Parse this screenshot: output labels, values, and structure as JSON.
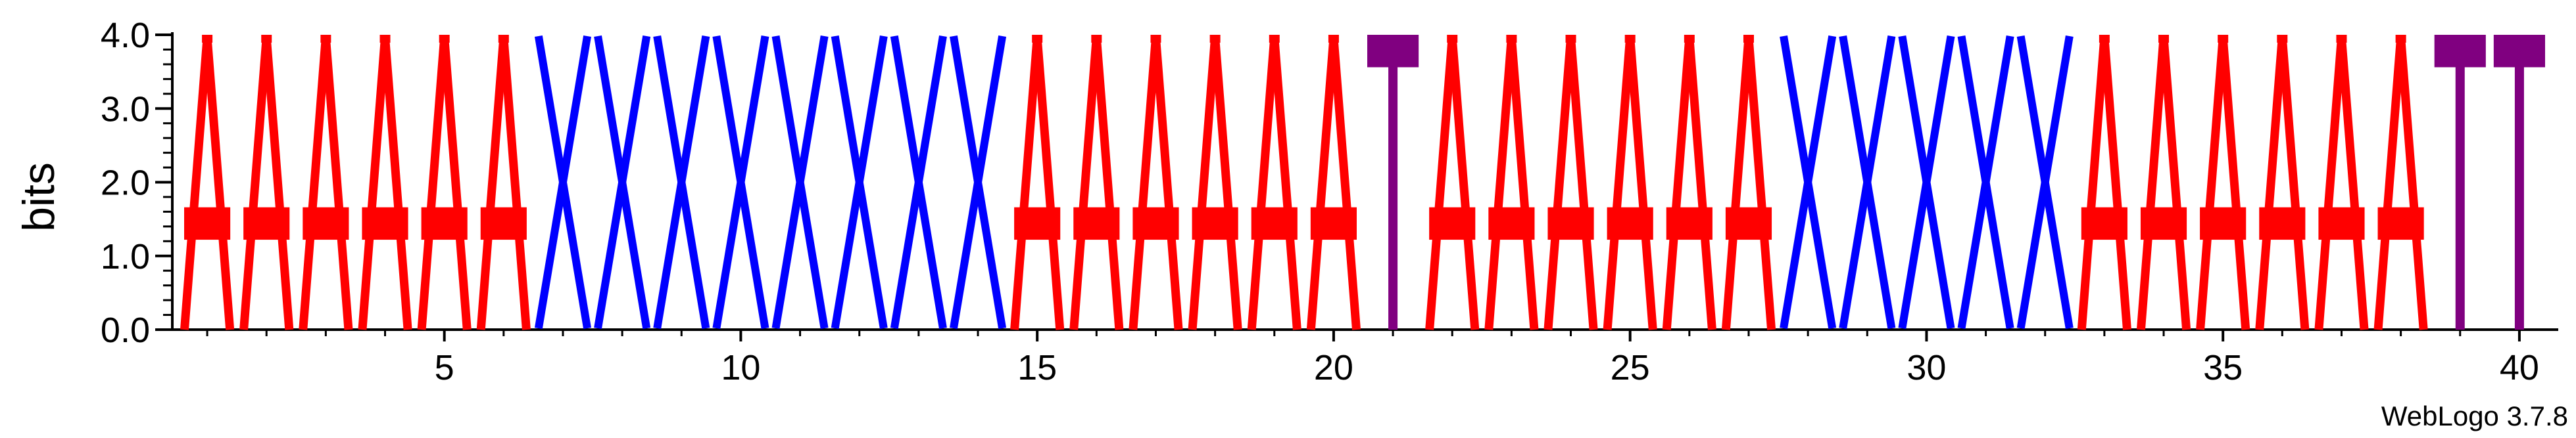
{
  "chart_data": {
    "type": "sequence-logo",
    "title": "",
    "ylabel": "bits",
    "xlabel": "",
    "ylim": [
      0,
      4.0
    ],
    "yticks": [
      "0.0",
      "1.0",
      "2.0",
      "3.0",
      "4.0"
    ],
    "xtick_labels": [
      "5",
      "10",
      "15",
      "20",
      "25",
      "30",
      "35",
      "40"
    ],
    "xtick_positions": [
      5,
      10,
      15,
      20,
      25,
      30,
      35,
      40
    ],
    "grid": false,
    "colors": {
      "A": "#ff0000",
      "X": "#0000ff",
      "T": "#800080"
    },
    "positions": [
      {
        "pos": 1,
        "letter": "A",
        "bits": 4.0
      },
      {
        "pos": 2,
        "letter": "A",
        "bits": 4.0
      },
      {
        "pos": 3,
        "letter": "A",
        "bits": 4.0
      },
      {
        "pos": 4,
        "letter": "A",
        "bits": 4.0
      },
      {
        "pos": 5,
        "letter": "A",
        "bits": 4.0
      },
      {
        "pos": 6,
        "letter": "A",
        "bits": 4.0
      },
      {
        "pos": 7,
        "letter": "X",
        "bits": 4.0
      },
      {
        "pos": 8,
        "letter": "X",
        "bits": 4.0
      },
      {
        "pos": 9,
        "letter": "X",
        "bits": 4.0
      },
      {
        "pos": 10,
        "letter": "X",
        "bits": 4.0
      },
      {
        "pos": 11,
        "letter": "X",
        "bits": 4.0
      },
      {
        "pos": 12,
        "letter": "X",
        "bits": 4.0
      },
      {
        "pos": 13,
        "letter": "X",
        "bits": 4.0
      },
      {
        "pos": 14,
        "letter": "X",
        "bits": 4.0
      },
      {
        "pos": 15,
        "letter": "A",
        "bits": 4.0
      },
      {
        "pos": 16,
        "letter": "A",
        "bits": 4.0
      },
      {
        "pos": 17,
        "letter": "A",
        "bits": 4.0
      },
      {
        "pos": 18,
        "letter": "A",
        "bits": 4.0
      },
      {
        "pos": 19,
        "letter": "A",
        "bits": 4.0
      },
      {
        "pos": 20,
        "letter": "A",
        "bits": 4.0
      },
      {
        "pos": 21,
        "letter": "T",
        "bits": 4.0
      },
      {
        "pos": 22,
        "letter": "A",
        "bits": 4.0
      },
      {
        "pos": 23,
        "letter": "A",
        "bits": 4.0
      },
      {
        "pos": 24,
        "letter": "A",
        "bits": 4.0
      },
      {
        "pos": 25,
        "letter": "A",
        "bits": 4.0
      },
      {
        "pos": 26,
        "letter": "A",
        "bits": 4.0
      },
      {
        "pos": 27,
        "letter": "A",
        "bits": 4.0
      },
      {
        "pos": 28,
        "letter": "X",
        "bits": 4.0
      },
      {
        "pos": 29,
        "letter": "X",
        "bits": 4.0
      },
      {
        "pos": 30,
        "letter": "X",
        "bits": 4.0
      },
      {
        "pos": 31,
        "letter": "X",
        "bits": 4.0
      },
      {
        "pos": 32,
        "letter": "X",
        "bits": 4.0
      },
      {
        "pos": 33,
        "letter": "A",
        "bits": 4.0
      },
      {
        "pos": 34,
        "letter": "A",
        "bits": 4.0
      },
      {
        "pos": 35,
        "letter": "A",
        "bits": 4.0
      },
      {
        "pos": 36,
        "letter": "A",
        "bits": 4.0
      },
      {
        "pos": 37,
        "letter": "A",
        "bits": 4.0
      },
      {
        "pos": 38,
        "letter": "A",
        "bits": 4.0
      },
      {
        "pos": 39,
        "letter": "T",
        "bits": 4.0
      },
      {
        "pos": 40,
        "letter": "T",
        "bits": 4.0
      }
    ],
    "credit": "WebLogo 3.7.8"
  }
}
